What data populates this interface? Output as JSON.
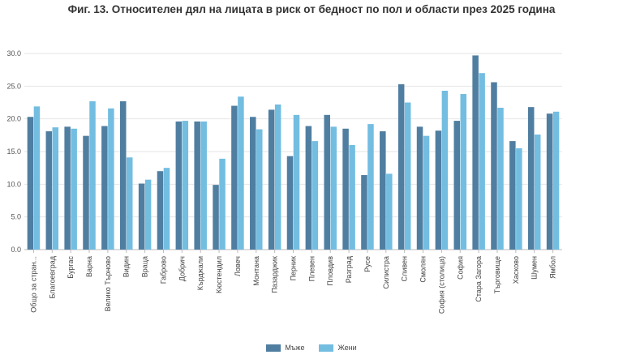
{
  "chart_data": {
    "type": "bar",
    "title": "Фиг. 13. Относителен дял на лицата в риск от бедност по пол и области  през 2025 година",
    "xlabel": "",
    "ylabel": "",
    "ylim": [
      0,
      30
    ],
    "yticks": [
      "0.0",
      "5.0",
      "10.0",
      "15.0",
      "20.0",
      "25.0",
      "30.0"
    ],
    "grid": true,
    "legend_position": "bottom",
    "categories": [
      "Общо за стран...",
      "Благоевград",
      "Бургас",
      "Варна",
      "Велико Търново",
      "Видин",
      "Враца",
      "Габрово",
      "Добрич",
      "Кърджали",
      "Кюстендил",
      "Ловеч",
      "Монтана",
      "Пазарджик",
      "Перник",
      "Плевен",
      "Пловдив",
      "Разград",
      "Русе",
      "Силистра",
      "Сливен",
      "Смолян",
      "София (столица)",
      "София",
      "Стара Загора",
      "Търговище",
      "Хасково",
      "Шумен",
      "Ямбол"
    ],
    "series": [
      {
        "name": "Мъже",
        "color": "#4f7ea1",
        "values": [
          20.3,
          18.1,
          18.8,
          17.4,
          18.9,
          22.7,
          10.1,
          12.0,
          19.6,
          19.6,
          9.9,
          22.0,
          20.3,
          21.4,
          14.3,
          18.9,
          20.6,
          18.5,
          11.4,
          18.1,
          25.3,
          18.8,
          18.2,
          19.7,
          29.7,
          25.6,
          16.6,
          21.8,
          20.8
        ]
      },
      {
        "name": "Жени",
        "color": "#73bde1",
        "values": [
          21.9,
          18.7,
          18.5,
          22.7,
          21.6,
          14.1,
          10.7,
          12.5,
          19.7,
          19.6,
          13.9,
          23.4,
          18.4,
          22.2,
          20.6,
          16.6,
          18.8,
          16.0,
          19.2,
          11.6,
          22.5,
          17.4,
          24.3,
          23.8,
          27.0,
          21.7,
          15.5,
          17.6,
          21.1
        ]
      }
    ]
  }
}
